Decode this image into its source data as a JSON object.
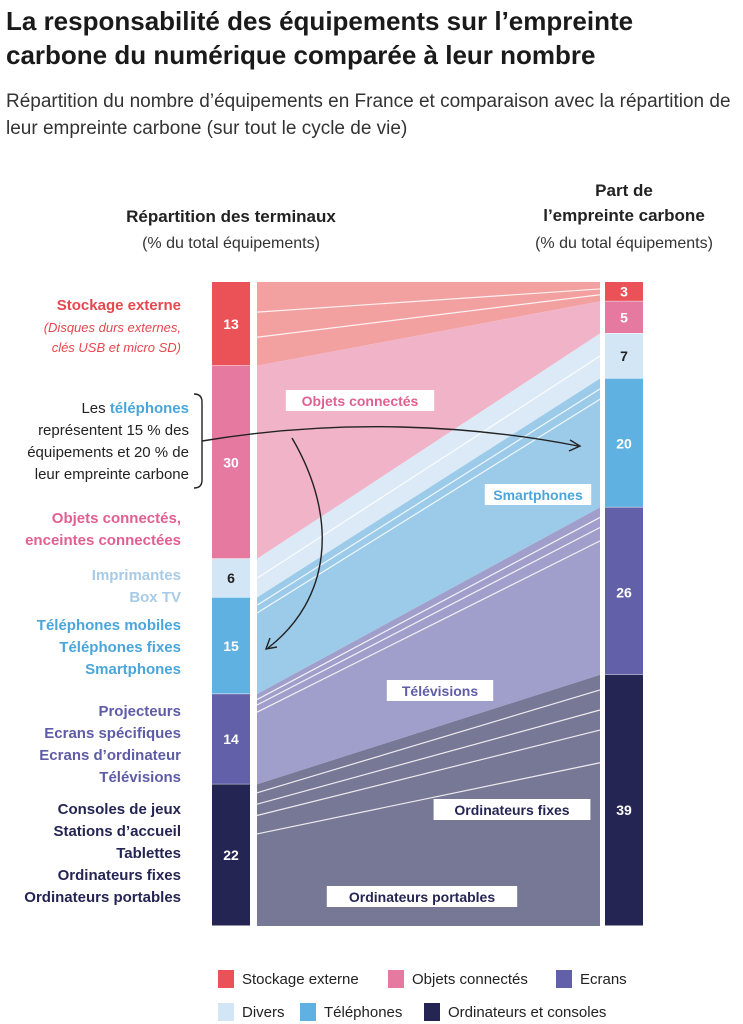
{
  "title": "La responsabilité des équipements sur l’empreinte carbone du numérique comparée à leur nombre",
  "subtitle": "Répartition du nombre d’équipements en France et comparaison avec la répartition de leur empreinte carbone (sur tout le cycle de vie)",
  "chart_data": {
    "type": "stacked-bar-flow",
    "left_column": {
      "title": "Répartition des terminaux",
      "subtitle": "(% du total équipements)"
    },
    "right_column": {
      "title_line1": "Part de",
      "title_line2": "l’empreinte carbone",
      "subtitle": "(% du total équipements)"
    },
    "categories": [
      {
        "key": "stockage",
        "name": "Stockage externe",
        "count_share": 13,
        "carbon_share": 3,
        "color": "#ea5258",
        "flow_color": "#f3a0a1",
        "label_color": "#e6474e"
      },
      {
        "key": "objets",
        "name": "Objets connectés",
        "count_share": 30,
        "carbon_share": 5,
        "color": "#e6799f",
        "flow_color": "#f0b3c7",
        "label_color": "#e0608f"
      },
      {
        "key": "divers",
        "name": "Divers",
        "count_share": 6,
        "carbon_share": 7,
        "color": "#d3e6f5",
        "flow_color": "#dbeaf6",
        "label_color": "#a7cbe6"
      },
      {
        "key": "telephones",
        "name": "Téléphones",
        "count_share": 15,
        "carbon_share": 20,
        "color": "#5eb1e0",
        "flow_color": "#9ccbea",
        "label_color": "#4aa6da"
      },
      {
        "key": "ecrans",
        "name": "Ecrans",
        "count_share": 14,
        "carbon_share": 26,
        "color": "#6260a8",
        "flow_color": "#a09fcb",
        "label_color": "#5e5ca6"
      },
      {
        "key": "ordinateurs",
        "name": "Ordinateurs et consoles",
        "count_share": 22,
        "carbon_share": 39,
        "color": "#242553",
        "flow_color": "#777895",
        "label_color": "#242553"
      }
    ],
    "left_labels": [
      {
        "cat": "stockage",
        "lines": [
          "Stockage externe"
        ],
        "note": [
          "(Disques durs externes,",
          "clés USB et micro SD)"
        ]
      },
      {
        "cat": "objets",
        "lines": [
          "Objets connectés,",
          "enceintes connectées"
        ]
      },
      {
        "cat": "divers",
        "lines": [
          "Imprimantes",
          "Box TV"
        ]
      },
      {
        "cat": "telephones",
        "lines": [
          "Téléphones mobiles",
          "Téléphones fixes",
          "Smartphones"
        ]
      },
      {
        "cat": "ecrans",
        "lines": [
          "Projecteurs",
          "Ecrans spécifiques",
          "Ecrans d’ordinateur",
          "Télévisions"
        ]
      },
      {
        "cat": "ordinateurs",
        "lines": [
          "Consoles de jeux",
          "Stations d’accueil",
          "Tablettes",
          "Ordinateurs fixes",
          "Ordinateurs portables"
        ]
      }
    ],
    "flow_labels": [
      {
        "text": "Objets connectés",
        "cat": "objets"
      },
      {
        "text": "Smartphones",
        "cat": "telephones"
      },
      {
        "text": "Télévisions",
        "cat": "ecrans"
      },
      {
        "text": "Ordinateurs fixes",
        "cat": "ordinateurs"
      },
      {
        "text": "Ordinateurs portables",
        "cat": "ordinateurs"
      }
    ],
    "annotation": {
      "text_before": "Les ",
      "highlight": "téléphones",
      "text_after_lines": [
        " représentent 15 % des",
        "équipements et 20 % de",
        "leur empreinte carbone"
      ]
    },
    "legend": [
      {
        "cat": "stockage",
        "label": "Stockage externe"
      },
      {
        "cat": "objets",
        "label": "Objets connectés"
      },
      {
        "cat": "ecrans",
        "label": "Ecrans"
      },
      {
        "cat": "divers",
        "label": "Divers"
      },
      {
        "cat": "telephones",
        "label": "Téléphones"
      },
      {
        "cat": "ordinateurs",
        "label": "Ordinateurs et consoles"
      }
    ]
  }
}
